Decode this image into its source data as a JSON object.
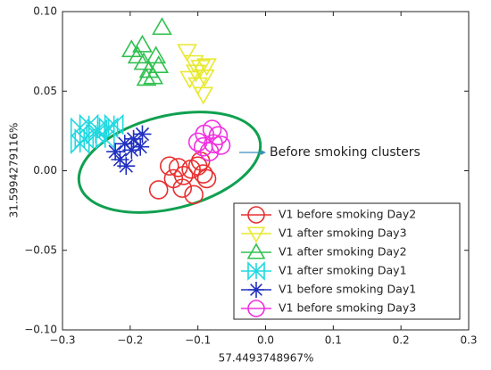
{
  "chart_data": {
    "type": "scatter",
    "xlabel": "57.4493748967%",
    "ylabel": "31.5994279116%",
    "annotation": "Before smoking clusters",
    "xlim": [
      -0.3,
      0.3
    ],
    "ylim": [
      -0.1,
      0.1
    ],
    "xticks": [
      {
        "value": -0.3,
        "label": "−0.3"
      },
      {
        "value": -0.2,
        "label": "−0.2"
      },
      {
        "value": -0.1,
        "label": "−0.1"
      },
      {
        "value": 0,
        "label": "0.0"
      },
      {
        "value": 0.1,
        "label": "0.1"
      },
      {
        "value": 0.2,
        "label": "0.2"
      },
      {
        "value": 0.3,
        "label": "0.3"
      }
    ],
    "yticks": [
      {
        "value": -0.1,
        "label": "−0.10"
      },
      {
        "value": -0.05,
        "label": "−0.05"
      },
      {
        "value": 0,
        "label": "0.00"
      },
      {
        "value": 0.05,
        "label": "0.05"
      },
      {
        "value": 0.1,
        "label": "0.10"
      }
    ],
    "legend": "lower right",
    "series": [
      {
        "name": "V1 before smoking Day2",
        "color": "#e83030",
        "marker": "circle",
        "x": [
          -0.158,
          -0.142,
          -0.129,
          -0.123,
          -0.11,
          -0.1,
          -0.092,
          -0.087,
          -0.106,
          -0.121,
          -0.136,
          -0.096
        ],
        "values": [
          -0.012,
          0.003,
          0.002,
          -0.011,
          0.001,
          0.003,
          -0.002,
          -0.005,
          -0.015,
          -0.003,
          -0.005,
          0.006
        ]
      },
      {
        "name": "V1 after smoking Day3",
        "color": "#e8e830",
        "marker": "triangle-down",
        "x": [
          -0.116,
          -0.106,
          -0.096,
          -0.09,
          -0.1,
          -0.092,
          -0.087,
          -0.112,
          -0.103
        ],
        "values": [
          0.075,
          0.068,
          0.065,
          0.059,
          0.054,
          0.048,
          0.066,
          0.058,
          0.062
        ]
      },
      {
        "name": "V1 after smoking Day2",
        "color": "#30c050",
        "marker": "triangle-up",
        "x": [
          -0.198,
          -0.189,
          -0.18,
          -0.172,
          -0.166,
          -0.182,
          -0.162,
          -0.153,
          -0.176,
          -0.158
        ],
        "values": [
          0.076,
          0.072,
          0.068,
          0.063,
          0.059,
          0.079,
          0.072,
          0.09,
          0.058,
          0.066
        ]
      },
      {
        "name": "V1 after smoking Day1",
        "color": "#20d8e0",
        "marker": "bowtie",
        "x": [
          -0.274,
          -0.261,
          -0.248,
          -0.232,
          -0.268,
          -0.251,
          -0.237,
          -0.274,
          -0.224
        ],
        "values": [
          0.027,
          0.029,
          0.026,
          0.027,
          0.02,
          0.023,
          0.02,
          0.017,
          0.029
        ]
      },
      {
        "name": "V1 before smoking Day1",
        "color": "#2030c0",
        "marker": "asterisk",
        "x": [
          -0.222,
          -0.208,
          -0.195,
          -0.182,
          -0.215,
          -0.198,
          -0.185,
          -0.206
        ],
        "values": [
          0.012,
          0.017,
          0.02,
          0.023,
          0.007,
          0.013,
          0.015,
          0.003
        ]
      },
      {
        "name": "V1 before smoking Day3",
        "color": "#f030e0",
        "marker": "circle",
        "x": [
          -0.1,
          -0.09,
          -0.079,
          -0.07,
          -0.092,
          -0.077,
          -0.083,
          -0.066
        ],
        "values": [
          0.018,
          0.023,
          0.026,
          0.022,
          0.015,
          0.017,
          0.012,
          0.016
        ]
      }
    ]
  }
}
